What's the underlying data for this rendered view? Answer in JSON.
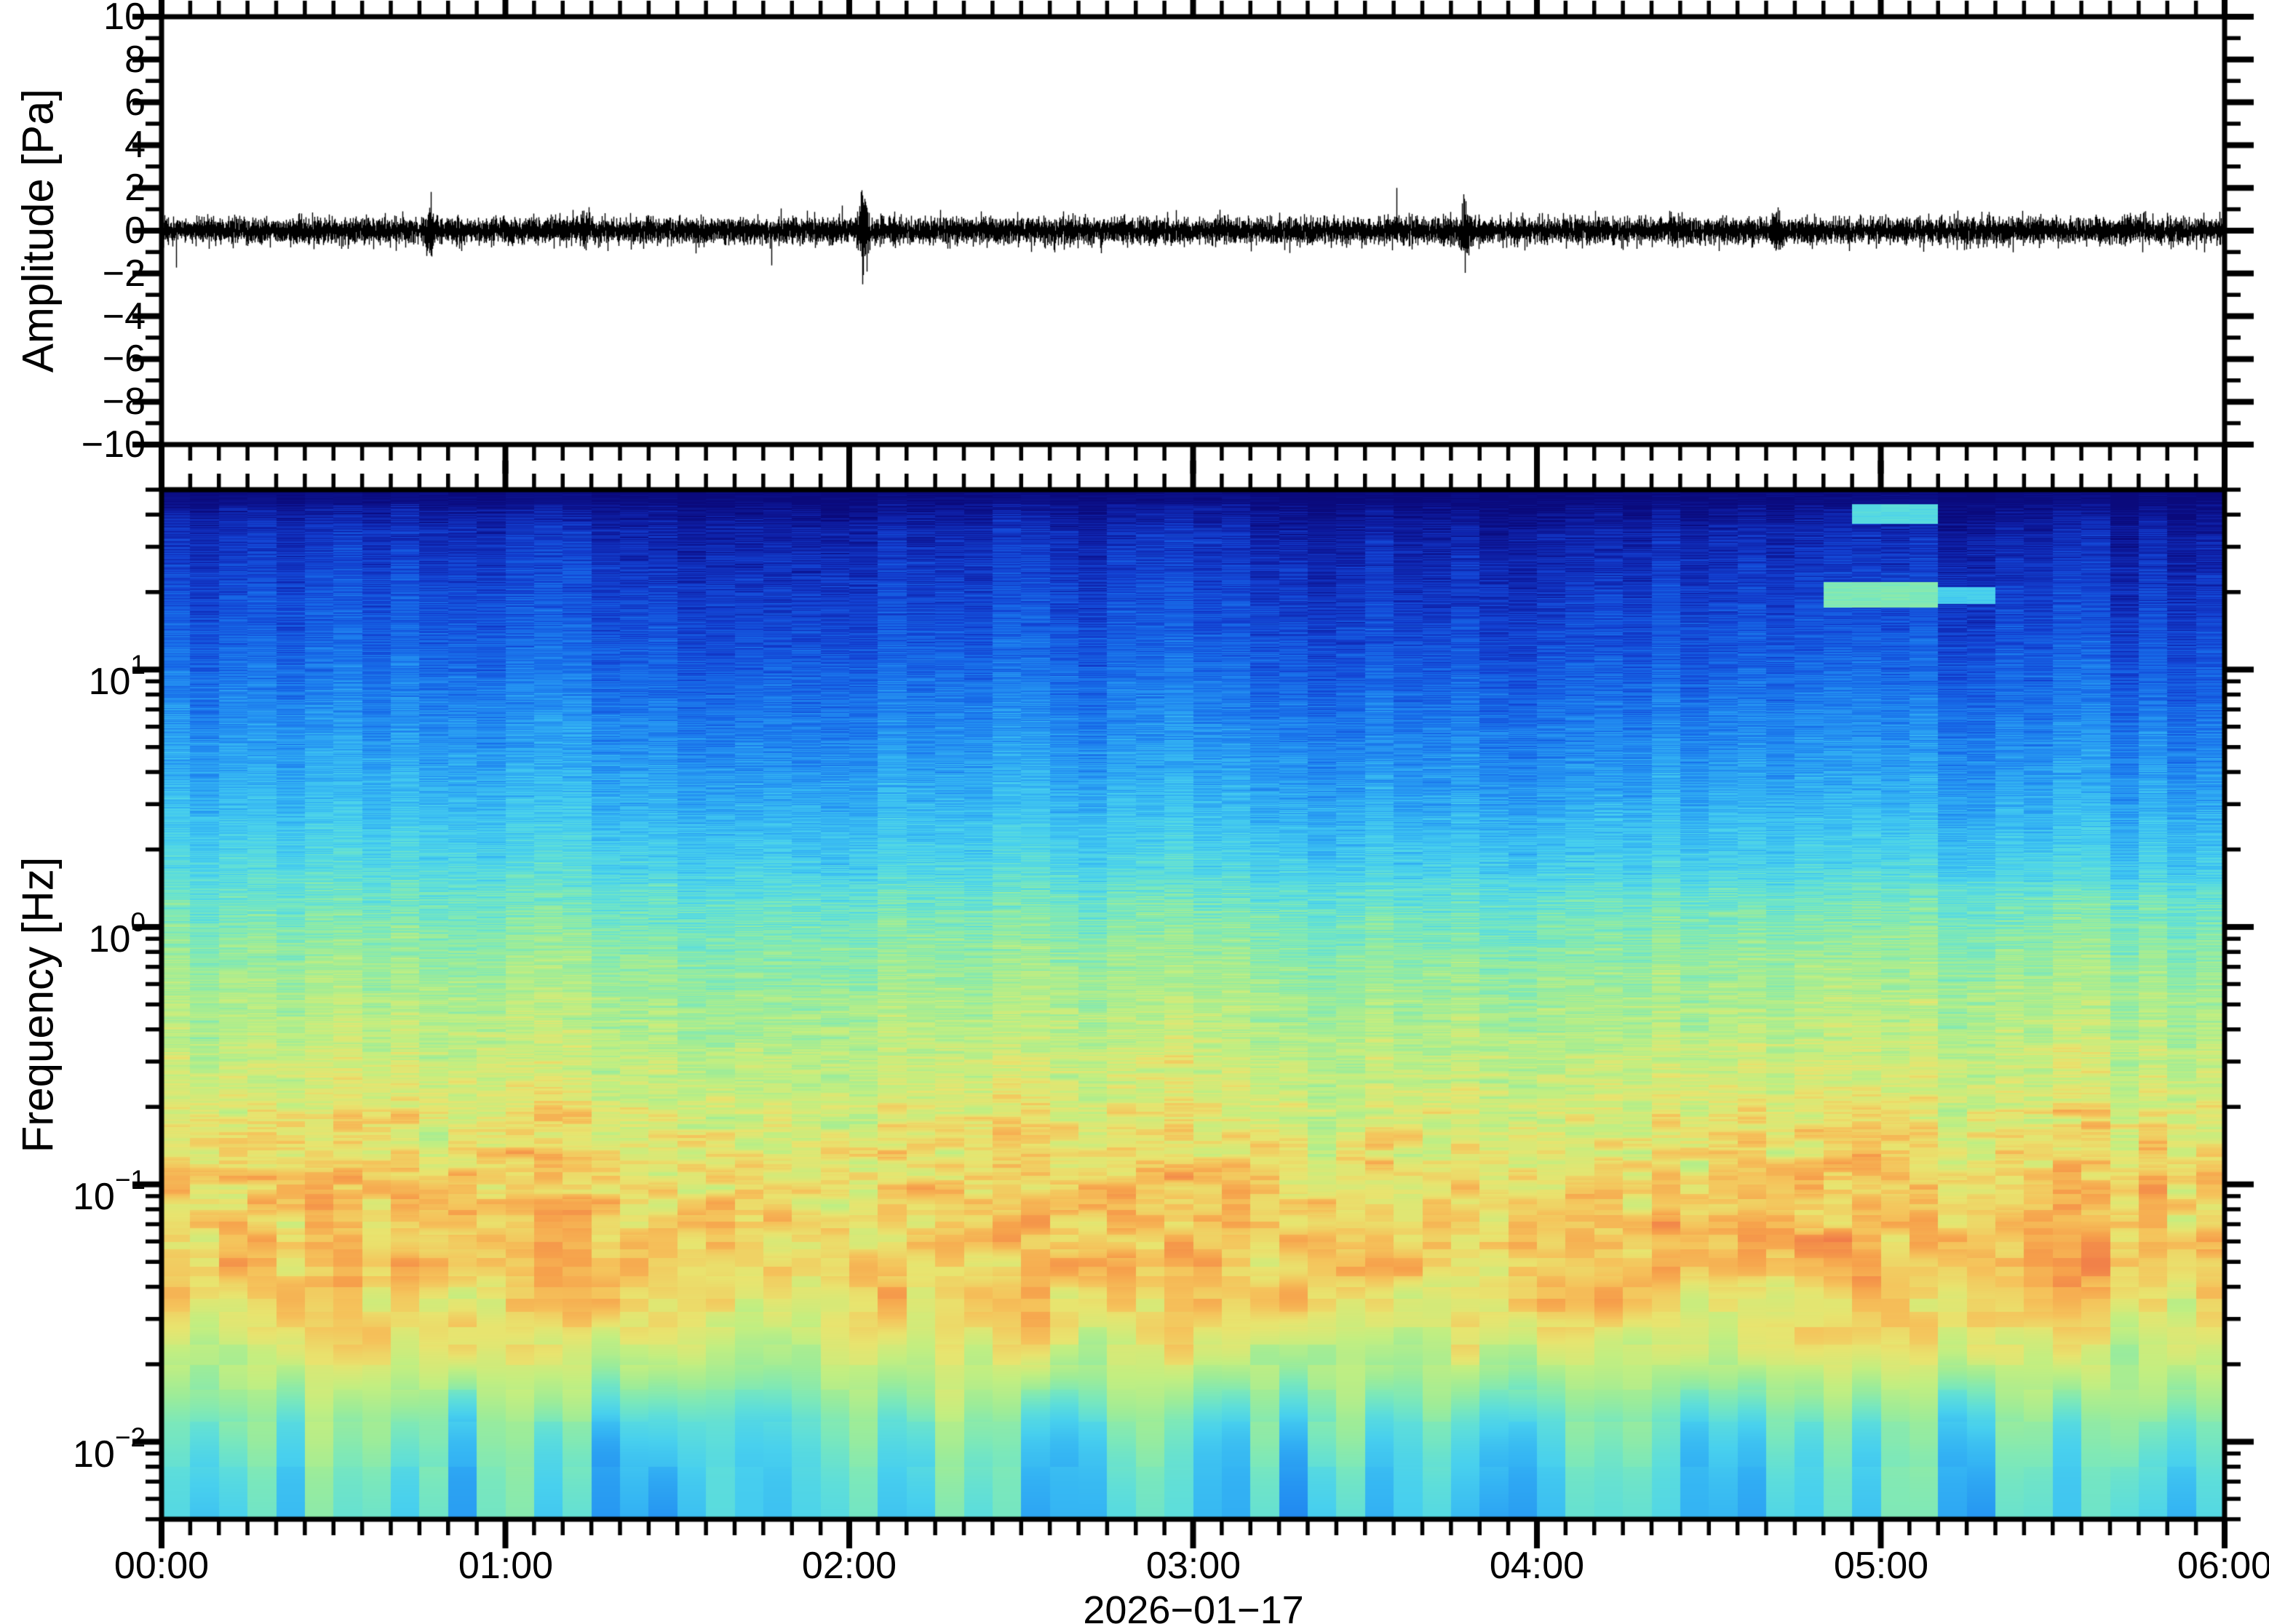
{
  "figure": {
    "background": "#ffffff",
    "frame_color": "#000000"
  },
  "top_panel": {
    "ylabel": "Amplitude [Pa]",
    "ylim": [
      -10,
      10
    ],
    "ytick_major_step": 2,
    "ytick_minor_step": 1,
    "ytick_values": [
      10,
      8,
      6,
      4,
      2,
      0,
      -2,
      -4,
      -6,
      -8,
      -10
    ],
    "ytick_labels": [
      "10",
      "8",
      "6",
      "4",
      "2",
      "0",
      "−2",
      "−4",
      "−6",
      "−8",
      "−10"
    ]
  },
  "bottom_panel": {
    "ylabel": "Frequency [Hz]",
    "yscale": "log",
    "freq_range_hz": [
      0.005,
      50
    ],
    "ytick_base": "10",
    "ytick_values": [
      10,
      1,
      0.1,
      0.01
    ],
    "ytick_exponents": [
      "1",
      "0",
      "−1",
      "−2"
    ]
  },
  "x_axis": {
    "tick_labels": [
      "00:00",
      "01:00",
      "02:00",
      "03:00",
      "04:00",
      "05:00",
      "06:00"
    ],
    "tick_hours": [
      0,
      1,
      2,
      3,
      4,
      5,
      6
    ],
    "minor_interval_minutes": 5,
    "date_label": "2026−01−17"
  },
  "chart_data": [
    {
      "type": "line",
      "name": "pressure-waveform",
      "ylabel": "Amplitude [Pa]",
      "x_range_hours": [
        0,
        6
      ],
      "ylim": [
        -10,
        10
      ],
      "line_color": "#000000",
      "noise_sigma_pa": 0.28,
      "typical_band_pa": 0.7,
      "spike_events": [
        {
          "time_hours": 0.78,
          "peak_pa": 1.6
        },
        {
          "time_hours": 1.23,
          "peak_pa": 1.2
        },
        {
          "time_hours": 2.04,
          "peak_pa": 2.2
        },
        {
          "time_hours": 3.79,
          "peak_pa": 1.7
        },
        {
          "time_hours": 4.7,
          "peak_pa": 1.3
        }
      ]
    },
    {
      "type": "heatmap",
      "name": "spectrogram",
      "x_range_hours": [
        0,
        6
      ],
      "freq_range_hz": [
        0.005,
        50
      ],
      "time_bin_minutes": 5,
      "n_time_bins": 72,
      "colormap_stops": [
        [
          0.0,
          "#0a0a7c"
        ],
        [
          0.07,
          "#0e1fa6"
        ],
        [
          0.14,
          "#1341d2"
        ],
        [
          0.21,
          "#176ae8"
        ],
        [
          0.28,
          "#2492f2"
        ],
        [
          0.34,
          "#35b6f3"
        ],
        [
          0.4,
          "#48d0ee"
        ],
        [
          0.46,
          "#5ededa"
        ],
        [
          0.52,
          "#7ce8ba"
        ],
        [
          0.58,
          "#9eec98"
        ],
        [
          0.65,
          "#c4ee80"
        ],
        [
          0.72,
          "#e8e46f"
        ],
        [
          0.78,
          "#f5c35b"
        ],
        [
          0.84,
          "#f6a04b"
        ],
        [
          0.9,
          "#f17f49"
        ],
        [
          0.96,
          "#ec5e51"
        ],
        [
          1.0,
          "#e84c55"
        ]
      ],
      "power_profile": [
        [
          50,
          0.015
        ],
        [
          45,
          0.03
        ],
        [
          35,
          0.1
        ],
        [
          25,
          0.135
        ],
        [
          18,
          0.165
        ],
        [
          12,
          0.2
        ],
        [
          8,
          0.245
        ],
        [
          5,
          0.295
        ],
        [
          3,
          0.355
        ],
        [
          2,
          0.41
        ],
        [
          1.4,
          0.47
        ],
        [
          1.0,
          0.53
        ],
        [
          0.7,
          0.575
        ],
        [
          0.45,
          0.615
        ],
        [
          0.3,
          0.655
        ],
        [
          0.2,
          0.69
        ],
        [
          0.13,
          0.73
        ],
        [
          0.09,
          0.76
        ],
        [
          0.06,
          0.775
        ],
        [
          0.04,
          0.76
        ],
        [
          0.028,
          0.72
        ],
        [
          0.02,
          0.645
        ],
        [
          0.015,
          0.565
        ],
        [
          0.012,
          0.5
        ],
        [
          0.009,
          0.455
        ],
        [
          0.007,
          0.43
        ],
        [
          0.005,
          0.41
        ]
      ],
      "noise": {
        "fine_bin_hz": 0.004,
        "coarse_bin_hz": 0.012,
        "column_level": 0.07,
        "low_band_column_tint": 0.22,
        "microbarom_band_hz": [
          0.03,
          0.2
        ],
        "microbarom_noise": 0.085
      },
      "high_freq_cooling_trend": 0.035,
      "transients": [
        {
          "time_hours": 4.92,
          "duration_hours": 0.17,
          "freq_low_hz": 37,
          "freq_high_hz": 46,
          "level": 0.44
        },
        {
          "time_hours": 4.9,
          "duration_hours": 0.25,
          "freq_low_hz": 17.5,
          "freq_high_hz": 22,
          "level": 0.53
        },
        {
          "time_hours": 5.15,
          "duration_hours": 0.17,
          "freq_low_hz": 18,
          "freq_high_hz": 21,
          "level": 0.4
        }
      ]
    }
  ]
}
